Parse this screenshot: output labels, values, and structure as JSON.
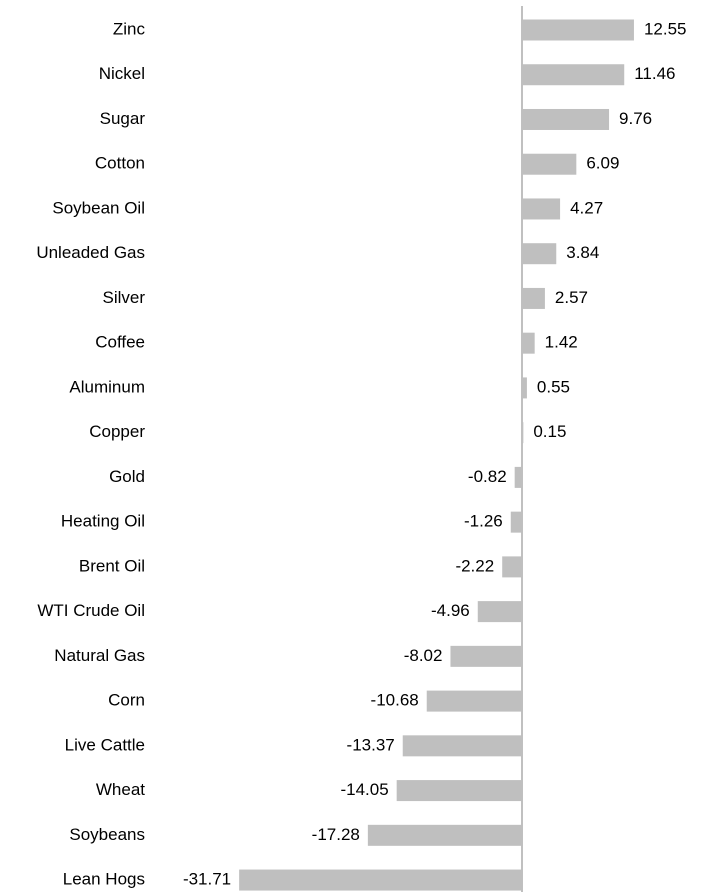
{
  "chart_data": {
    "type": "bar",
    "orientation": "horizontal",
    "categories": [
      "Zinc",
      "Nickel",
      "Sugar",
      "Cotton",
      "Soybean Oil",
      "Unleaded Gas",
      "Silver",
      "Coffee",
      "Aluminum",
      "Copper",
      "Gold",
      "Heating Oil",
      "Brent Oil",
      "WTI Crude Oil",
      "Natural Gas",
      "Corn",
      "Live Cattle",
      "Wheat",
      "Soybeans",
      "Lean Hogs"
    ],
    "values": [
      12.55,
      11.46,
      9.76,
      6.09,
      4.27,
      3.84,
      2.57,
      1.42,
      0.55,
      0.15,
      -0.82,
      -1.26,
      -2.22,
      -4.96,
      -8.02,
      -10.68,
      -13.37,
      -14.05,
      -17.28,
      -31.71
    ],
    "color": "#bfbfbf",
    "value_label_colors": {
      "positive": "#41698c",
      "negative": "#c00000"
    }
  }
}
